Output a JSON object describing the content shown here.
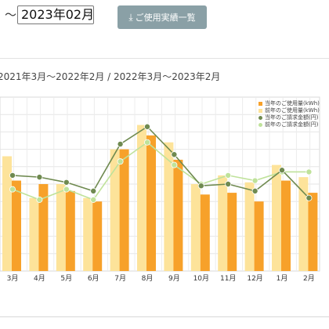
{
  "filter": {
    "separator": "～",
    "end_month": "2023年02月",
    "download_label": "ご使用実績一覧"
  },
  "period_label": "2021年3月～2022年2月 / 2022年3月～2023年2月",
  "colors": {
    "current_usage": "#f7a12a",
    "previous_usage": "#fde39a",
    "current_amount": "#6f8a50",
    "previous_amount": "#bfe29a",
    "button_bg": "#8aa0a6"
  },
  "chart_data": {
    "type": "bar",
    "categories": [
      "3月",
      "4月",
      "5月",
      "6月",
      "7月",
      "8月",
      "9月",
      "10月",
      "11月",
      "12月",
      "1月",
      "2月"
    ],
    "ylim": [
      0,
      100
    ],
    "series": [
      {
        "name": "当年のご使用量(kWh)",
        "kind": "bar",
        "values": [
          52,
          50,
          46,
          40,
          70,
          78,
          64,
          44,
          45,
          40,
          52,
          45
        ]
      },
      {
        "name": "前年のご使用量(kWh)",
        "kind": "bar",
        "values": [
          66,
          42,
          50,
          42,
          70,
          84,
          74,
          50,
          55,
          51,
          61,
          54
        ]
      },
      {
        "name": "当年のご請求金額(円)",
        "kind": "line",
        "values": [
          55,
          54,
          51,
          46,
          73,
          83,
          67,
          49,
          50,
          46,
          58,
          42
        ]
      },
      {
        "name": "前年のご請求金額(円)",
        "kind": "line",
        "values": [
          47,
          41,
          47,
          41,
          63,
          74,
          61,
          50,
          55,
          52,
          57,
          57
        ]
      }
    ]
  }
}
